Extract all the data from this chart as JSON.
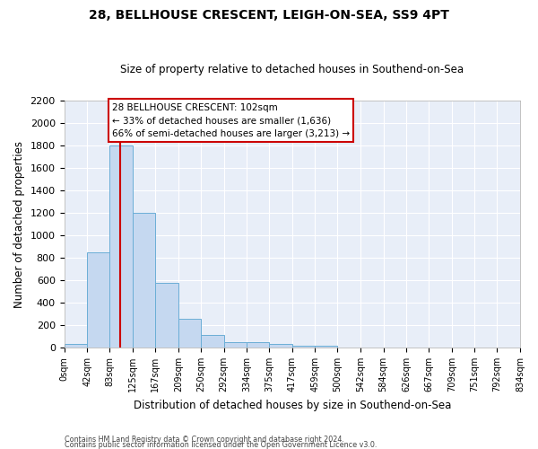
{
  "title1": "28, BELLHOUSE CRESCENT, LEIGH-ON-SEA, SS9 4PT",
  "title2": "Size of property relative to detached houses in Southend-on-Sea",
  "xlabel": "Distribution of detached houses by size in Southend-on-Sea",
  "ylabel": "Number of detached properties",
  "footnote1": "Contains HM Land Registry data © Crown copyright and database right 2024.",
  "footnote2": "Contains public sector information licensed under the Open Government Licence v3.0.",
  "bar_edges": [
    0,
    42,
    83,
    125,
    167,
    209,
    250,
    292,
    334,
    375,
    417,
    459,
    500,
    542,
    584,
    626,
    667,
    709,
    751,
    792,
    834
  ],
  "bar_heights": [
    30,
    850,
    1800,
    1200,
    580,
    255,
    115,
    45,
    45,
    30,
    20,
    17,
    0,
    0,
    0,
    0,
    0,
    0,
    0,
    0
  ],
  "bar_color": "#c5d8f0",
  "bar_edgecolor": "#6baed6",
  "vline_x": 102,
  "vline_color": "#cc0000",
  "annotation_text": "28 BELLHOUSE CRESCENT: 102sqm\n← 33% of detached houses are smaller (1,636)\n66% of semi-detached houses are larger (3,213) →",
  "annotation_box_color": "#ffffff",
  "annotation_box_edgecolor": "#cc0000",
  "ylim": [
    0,
    2200
  ],
  "yticks": [
    0,
    200,
    400,
    600,
    800,
    1000,
    1200,
    1400,
    1600,
    1800,
    2000,
    2200
  ],
  "tick_labels": [
    "0sqm",
    "42sqm",
    "83sqm",
    "125sqm",
    "167sqm",
    "209sqm",
    "250sqm",
    "292sqm",
    "334sqm",
    "375sqm",
    "417sqm",
    "459sqm",
    "500sqm",
    "542sqm",
    "584sqm",
    "626sqm",
    "667sqm",
    "709sqm",
    "751sqm",
    "792sqm",
    "834sqm"
  ],
  "bg_color": "#ffffff",
  "plot_bg_color": "#e8eef8"
}
